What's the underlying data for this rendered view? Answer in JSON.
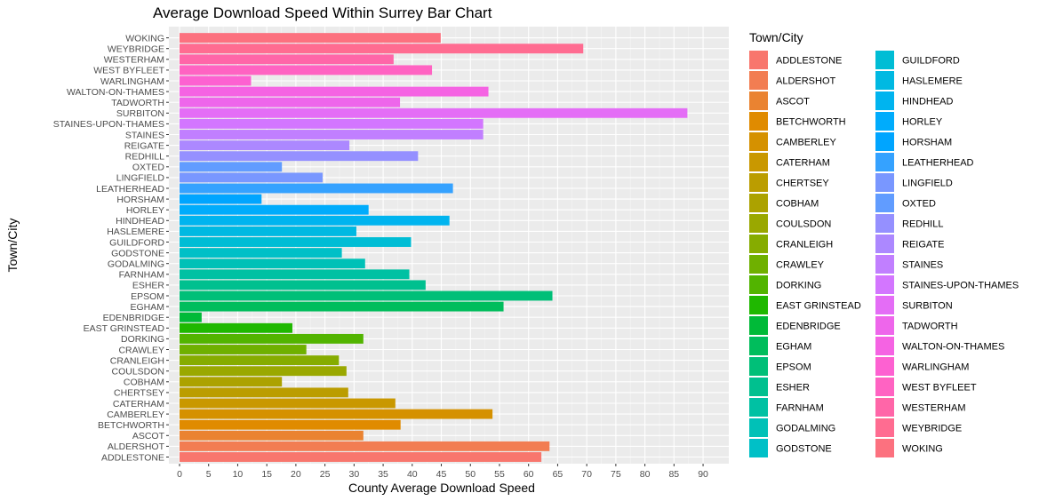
{
  "chart_data": {
    "type": "bar",
    "orientation": "horizontal",
    "title": "Average Download Speed Within Surrey Bar Chart",
    "xlabel": "County Average Download Speed",
    "ylabel": "Town/City",
    "xlim": [
      0,
      92
    ],
    "x_ticks": [
      0,
      5,
      10,
      15,
      20,
      25,
      30,
      35,
      40,
      45,
      50,
      55,
      60,
      65,
      70,
      75,
      80,
      85,
      90
    ],
    "grid": true,
    "legend_title": "Town/City",
    "legend_position": "right",
    "categories": [
      "ADDLESTONE",
      "ALDERSHOT",
      "ASCOT",
      "BETCHWORTH",
      "CAMBERLEY",
      "CATERHAM",
      "CHERTSEY",
      "COBHAM",
      "COULSDON",
      "CRANLEIGH",
      "CRAWLEY",
      "DORKING",
      "EAST GRINSTEAD",
      "EDENBRIDGE",
      "EGHAM",
      "EPSOM",
      "ESHER",
      "FARNHAM",
      "GODALMING",
      "GODSTONE",
      "GUILDFORD",
      "HASLEMERE",
      "HINDHEAD",
      "HORLEY",
      "HORSHAM",
      "LEATHERHEAD",
      "LINGFIELD",
      "OXTED",
      "REDHILL",
      "REIGATE",
      "STAINES",
      "STAINES-UPON-THAMES",
      "SURBITON",
      "TADWORTH",
      "WALTON-ON-THAMES",
      "WARLINGHAM",
      "WEST BYFLEET",
      "WESTERHAM",
      "WEYBRIDGE",
      "WOKING"
    ],
    "values": [
      62.2,
      63.6,
      31.6,
      38.0,
      53.8,
      37.1,
      29.0,
      17.6,
      28.7,
      27.4,
      21.8,
      31.6,
      19.4,
      3.8,
      55.7,
      64.1,
      42.3,
      39.5,
      31.9,
      27.9,
      39.8,
      30.4,
      46.4,
      32.5,
      14.1,
      47.0,
      24.6,
      17.6,
      41.0,
      29.2,
      52.2,
      52.2,
      87.3,
      37.9,
      53.1,
      12.3,
      43.4,
      36.8,
      69.4,
      44.9
    ],
    "colors": [
      "#F8766D",
      "#F27D52",
      "#EA8331",
      "#E08B00",
      "#D59100",
      "#C99800",
      "#BB9D00",
      "#ACA200",
      "#9AA800",
      "#86AC00",
      "#6FB000",
      "#52B400",
      "#1FB800",
      "#00BA38",
      "#00BD5C",
      "#00BF78",
      "#00C08F",
      "#00C1A3",
      "#00C1B7",
      "#00C0C7",
      "#00BDD5",
      "#00B9E2",
      "#00B4EF",
      "#00ACFC",
      "#00A5FF",
      "#35A2FF",
      "#7997FF",
      "#619CFF",
      "#9590FF",
      "#AC88FF",
      "#C17FFF",
      "#D376FF",
      "#E46DF6",
      "#EE66EB",
      "#F563E3",
      "#FD61D1",
      "#FF63C2",
      "#FF66A8",
      "#FF6C91",
      "#FC717F"
    ]
  }
}
